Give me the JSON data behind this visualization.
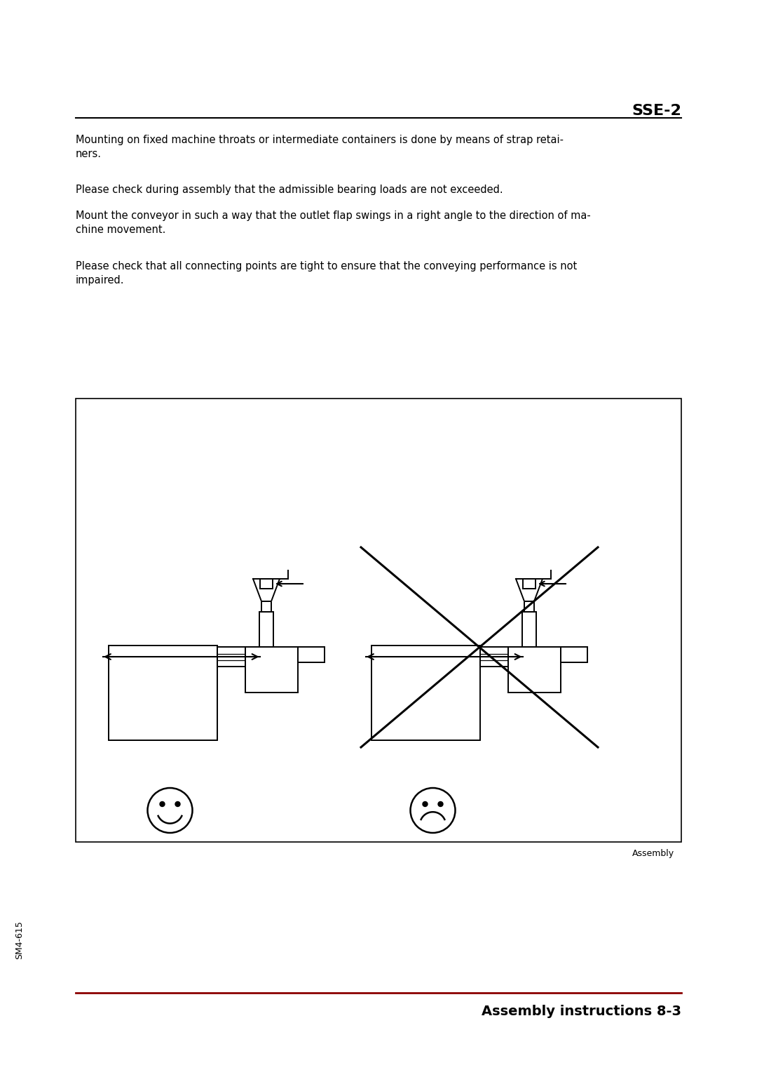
{
  "header_text": "SSE-2",
  "header_line_color": "#000000",
  "para1": "Mounting on fixed machine throats or intermediate containers is done by means of strap retai-\nners.",
  "para2": "Please check during assembly that the admissible bearing loads are not exceeded.",
  "para3": "Mount the conveyor in such a way that the outlet flap swings in a right angle to the direction of ma-\nchine movement.",
  "para4": "Please check that all connecting points are tight to ensure that the conveying performance is not\nimpaired.",
  "caption": "Assembly",
  "footer_line_color": "#8B0000",
  "footer_text": "Assembly instructions 8-3",
  "sidebar_text": "SM4-615",
  "bg_color": "#ffffff",
  "text_color": "#000000",
  "body_fontsize": 10.5,
  "header_fontsize": 16,
  "footer_fontsize": 14,
  "sidebar_fontsize": 9,
  "caption_fontsize": 9
}
